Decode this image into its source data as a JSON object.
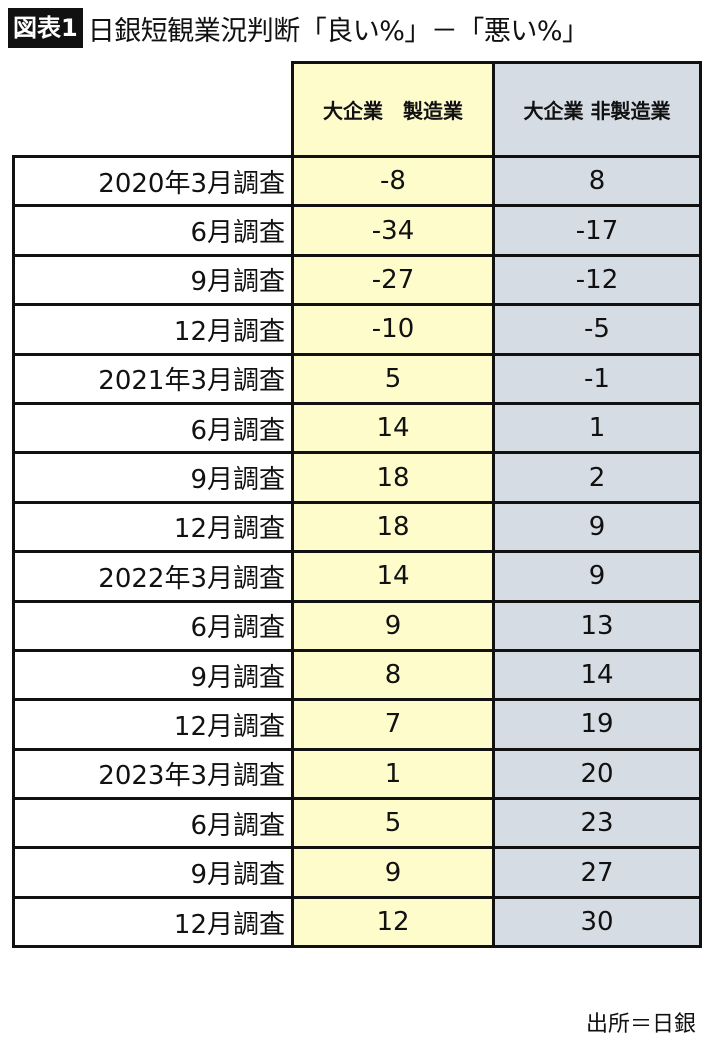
{
  "title": {
    "badge": "図表1",
    "text": "日銀短観業況判断「良い%」－「悪い%」"
  },
  "source": "出所＝日銀",
  "colors": {
    "manufacturing_col": "#fffccc",
    "nonmanufacturing_col": "#d6dce4"
  },
  "chart_data": {
    "type": "table",
    "columns": [
      "大企業　製造業",
      "大企業 非製造業"
    ],
    "rows": [
      {
        "label": "2020年3月調査",
        "values": [
          -8,
          8
        ]
      },
      {
        "label": "6月調査",
        "values": [
          -34,
          -17
        ]
      },
      {
        "label": "9月調査",
        "values": [
          -27,
          -12
        ]
      },
      {
        "label": "12月調査",
        "values": [
          -10,
          -5
        ]
      },
      {
        "label": "2021年3月調査",
        "values": [
          5,
          -1
        ]
      },
      {
        "label": "6月調査",
        "values": [
          14,
          1
        ]
      },
      {
        "label": "9月調査",
        "values": [
          18,
          2
        ]
      },
      {
        "label": "12月調査",
        "values": [
          18,
          9
        ]
      },
      {
        "label": "2022年3月調査",
        "values": [
          14,
          9
        ]
      },
      {
        "label": "6月調査",
        "values": [
          9,
          13
        ]
      },
      {
        "label": "9月調査",
        "values": [
          8,
          14
        ]
      },
      {
        "label": "12月調査",
        "values": [
          7,
          19
        ]
      },
      {
        "label": "2023年3月調査",
        "values": [
          1,
          20
        ]
      },
      {
        "label": "6月調査",
        "values": [
          5,
          23
        ]
      },
      {
        "label": "9月調査",
        "values": [
          9,
          27
        ]
      },
      {
        "label": "12月調査",
        "values": [
          12,
          30
        ]
      }
    ]
  }
}
